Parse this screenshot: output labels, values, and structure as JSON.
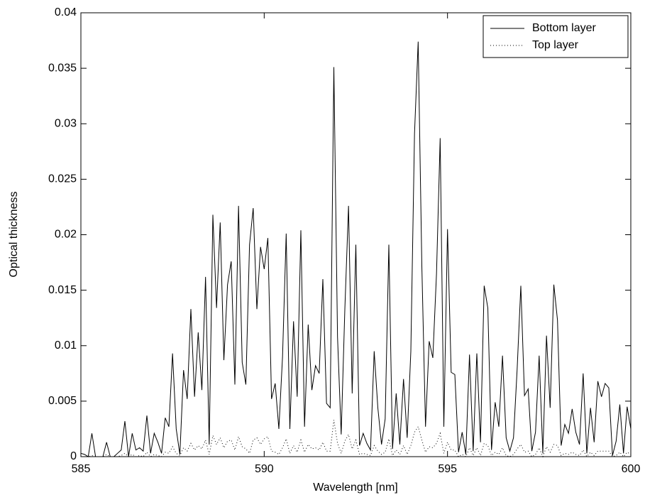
{
  "chart_data": {
    "type": "line",
    "xlabel": "Wavelength [nm]",
    "ylabel": "Optical thickness",
    "x": [
      585,
      585.1,
      585.2,
      585.3,
      585.4,
      585.5,
      585.6,
      585.7,
      585.8,
      585.9,
      586,
      586.1,
      586.2,
      586.3,
      586.4,
      586.5,
      586.6,
      586.7,
      586.8,
      586.9,
      587,
      587.1,
      587.2,
      587.3,
      587.4,
      587.5,
      587.6,
      587.7,
      587.8,
      587.9,
      588,
      588.1,
      588.2,
      588.3,
      588.4,
      588.5,
      588.6,
      588.7,
      588.8,
      588.9,
      589,
      589.1,
      589.2,
      589.3,
      589.4,
      589.5,
      589.6,
      589.7,
      589.8,
      589.9,
      590,
      590.1,
      590.2,
      590.3,
      590.4,
      590.5,
      590.6,
      590.7,
      590.8,
      590.9,
      591,
      591.1,
      591.2,
      591.3,
      591.4,
      591.5,
      591.6,
      591.7,
      591.8,
      591.9,
      592,
      592.1,
      592.2,
      592.3,
      592.4,
      592.5,
      592.6,
      592.7,
      592.8,
      592.9,
      593,
      593.1,
      593.2,
      593.3,
      593.4,
      593.5,
      593.6,
      593.7,
      593.8,
      593.9,
      594,
      594.1,
      594.2,
      594.3,
      594.4,
      594.5,
      594.6,
      594.7,
      594.8,
      594.9,
      595,
      595.1,
      595.2,
      595.3,
      595.4,
      595.5,
      595.6,
      595.7,
      595.8,
      595.9,
      596,
      596.1,
      596.2,
      596.3,
      596.4,
      596.5,
      596.6,
      596.7,
      596.8,
      596.9,
      597,
      597.1,
      597.2,
      597.3,
      597.4,
      597.5,
      597.6,
      597.7,
      597.8,
      597.9,
      598,
      598.1,
      598.2,
      598.3,
      598.4,
      598.5,
      598.6,
      598.7,
      598.8,
      598.9,
      599,
      599.1,
      599.2,
      599.3,
      599.4,
      599.5,
      599.6,
      599.7,
      599.8,
      599.9,
      600
    ],
    "series": [
      {
        "name": "Bottom layer",
        "color": "#000000",
        "dash": "none",
        "values": [
          0.0003,
          0.0002,
          0,
          0.0021,
          0,
          0,
          0,
          0.0013,
          0,
          0,
          0.0003,
          0.0006,
          0.0032,
          0,
          0.0021,
          0.0006,
          0.0008,
          0.0005,
          0.0037,
          0.0003,
          0.0021,
          0.0013,
          0.0003,
          0.0035,
          0.0027,
          0.0093,
          0.0025,
          0.0002,
          0.0078,
          0.0052,
          0.0133,
          0.0054,
          0.0112,
          0.006,
          0.0162,
          0.0011,
          0.0218,
          0.0134,
          0.0211,
          0.0087,
          0.0155,
          0.0176,
          0.0065,
          0.0226,
          0.0085,
          0.0065,
          0.0191,
          0.0224,
          0.0133,
          0.0189,
          0.0169,
          0.0197,
          0.0052,
          0.0066,
          0.0025,
          0.009,
          0.0201,
          0.0025,
          0.0122,
          0.0054,
          0.0204,
          0.0027,
          0.0119,
          0.006,
          0.0082,
          0.0075,
          0.016,
          0.0048,
          0.0044,
          0.0351,
          0.0108,
          0.002,
          0.0133,
          0.0226,
          0.0057,
          0.0191,
          0.001,
          0.0021,
          0.0012,
          0.0006,
          0.0095,
          0.0044,
          0.0011,
          0.0034,
          0.0191,
          0.0007,
          0.0057,
          0.0011,
          0.007,
          0.0017,
          0.0095,
          0.0291,
          0.0374,
          0.0172,
          0.0027,
          0.0104,
          0.0089,
          0.0165,
          0.0287,
          0.0027,
          0.0205,
          0.0076,
          0.0074,
          0.0004,
          0.0022,
          0.0002,
          0.0092,
          0.0005,
          0.0093,
          0.0013,
          0.0154,
          0.0134,
          0.0006,
          0.0049,
          0.0027,
          0.0091,
          0.0017,
          0.0005,
          0.0017,
          0.0079,
          0.0154,
          0.0055,
          0.0061,
          0.0005,
          0.0022,
          0.0091,
          0.0003,
          0.0109,
          0.0044,
          0.0155,
          0.0123,
          0.001,
          0.0029,
          0.0021,
          0.0043,
          0.0022,
          0.0011,
          0.0075,
          0.0003,
          0.0044,
          0.0013,
          0.0068,
          0.0054,
          0.0066,
          0.0062,
          0.0001,
          0.0014,
          0.0047,
          0.0003,
          0.0045,
          0.0025
        ]
      },
      {
        "name": "Top layer",
        "color": "#000000",
        "dash": "1,3",
        "values": [
          0,
          0,
          0,
          0.0001,
          0,
          0,
          0,
          0.0002,
          0,
          0,
          0,
          0.0001,
          0.0003,
          0,
          0.0002,
          0,
          0.0001,
          0,
          0.0004,
          0,
          0.0002,
          0.0001,
          0,
          0.0004,
          0.0003,
          0.0009,
          0.0003,
          0.0001,
          0.0008,
          0.0005,
          0.0012,
          0.0006,
          0.001,
          0.0007,
          0.0015,
          0.0002,
          0.0019,
          0.0011,
          0.0017,
          0.0008,
          0.0014,
          0.0015,
          0.0006,
          0.0018,
          0.0009,
          0.0007,
          0.0003,
          0.0015,
          0.0017,
          0.0011,
          0.0016,
          0.0018,
          0.0005,
          0.0004,
          0.0002,
          0.0008,
          0.0016,
          0.0003,
          0.001,
          0.0004,
          0.0015,
          0.0004,
          0.0011,
          0.0007,
          0.0008,
          0.0006,
          0.0013,
          0.0005,
          0.0005,
          0.0033,
          0.0012,
          0.0003,
          0.0014,
          0.002,
          0.0007,
          0.0015,
          0.0002,
          0.0003,
          0.0002,
          0.0001,
          0.001,
          0.0005,
          0.0002,
          0.0004,
          0.0016,
          0.0001,
          0.0006,
          0.0002,
          0.001,
          0.0002,
          0.001,
          0.0022,
          0.0027,
          0.0015,
          0.0004,
          0.0009,
          0.0008,
          0.0012,
          0.0021,
          0.0003,
          0.0013,
          0.0006,
          0.0006,
          0,
          0.0002,
          0,
          0.0008,
          0.0001,
          0.0008,
          0.0001,
          0.0012,
          0.001,
          0.0001,
          0.0004,
          0.0002,
          0.0008,
          0.0001,
          0,
          0.0002,
          0.0007,
          0.0011,
          0.0004,
          0.0005,
          0,
          0.0002,
          0.0008,
          0,
          0.0009,
          0.0004,
          0.0011,
          0.001,
          0.0001,
          0.0003,
          0.0002,
          0.0004,
          0.0002,
          0.0001,
          0.0006,
          0,
          0.0004,
          0.0001,
          0.0005,
          0.0005,
          0.0005,
          0.0005,
          0,
          0.0001,
          0.0004,
          0,
          0.0004,
          0.0002
        ]
      }
    ],
    "xlim": [
      585,
      600
    ],
    "xticks": [
      585,
      590,
      595,
      600
    ],
    "ylim": [
      0,
      0.04
    ],
    "yticks": [
      0,
      0.005,
      0.01,
      0.015,
      0.02,
      0.025,
      0.03,
      0.035,
      0.04
    ],
    "legend": "top-right"
  }
}
